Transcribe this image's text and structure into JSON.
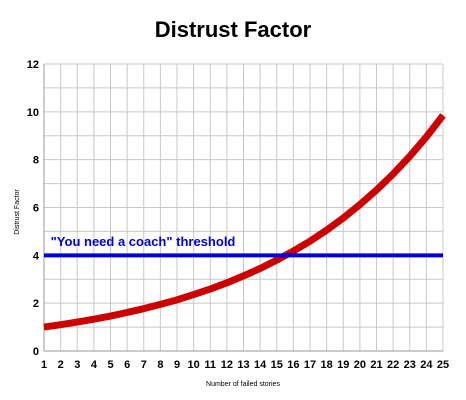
{
  "chart_data": {
    "type": "line",
    "title": "Distrust Factor",
    "xlabel": "Number of failed stories",
    "ylabel": "Distrust Factor",
    "x": [
      1,
      2,
      3,
      4,
      5,
      6,
      7,
      8,
      9,
      10,
      11,
      12,
      13,
      14,
      15,
      16,
      17,
      18,
      19,
      20,
      21,
      22,
      23,
      24,
      25
    ],
    "xlim": [
      1,
      25
    ],
    "ylim": [
      0,
      12
    ],
    "yticks": [
      0,
      2,
      4,
      6,
      8,
      10,
      12
    ],
    "xticks": [
      1,
      2,
      3,
      4,
      5,
      6,
      7,
      8,
      9,
      10,
      11,
      12,
      13,
      14,
      15,
      16,
      17,
      18,
      19,
      20,
      21,
      22,
      23,
      24,
      25
    ],
    "grid": true,
    "series": [
      {
        "values": [
          1.0,
          1.1,
          1.21,
          1.33,
          1.46,
          1.61,
          1.77,
          1.95,
          2.14,
          2.36,
          2.59,
          2.85,
          3.14,
          3.45,
          3.8,
          4.18,
          4.59,
          5.05,
          5.56,
          6.12,
          6.73,
          7.4,
          8.14,
          8.95,
          9.85
        ],
        "color": "#cc0000"
      },
      {
        "values": [
          4,
          4,
          4,
          4,
          4,
          4,
          4,
          4,
          4,
          4,
          4,
          4,
          4,
          4,
          4,
          4,
          4,
          4,
          4,
          4,
          4,
          4,
          4,
          4,
          4
        ],
        "color": "#0000dd"
      }
    ],
    "annotations": [
      {
        "text": "\"You need a coach\" threshold",
        "x": 1.4,
        "y": 4.4,
        "color": "#0000dd"
      }
    ]
  }
}
